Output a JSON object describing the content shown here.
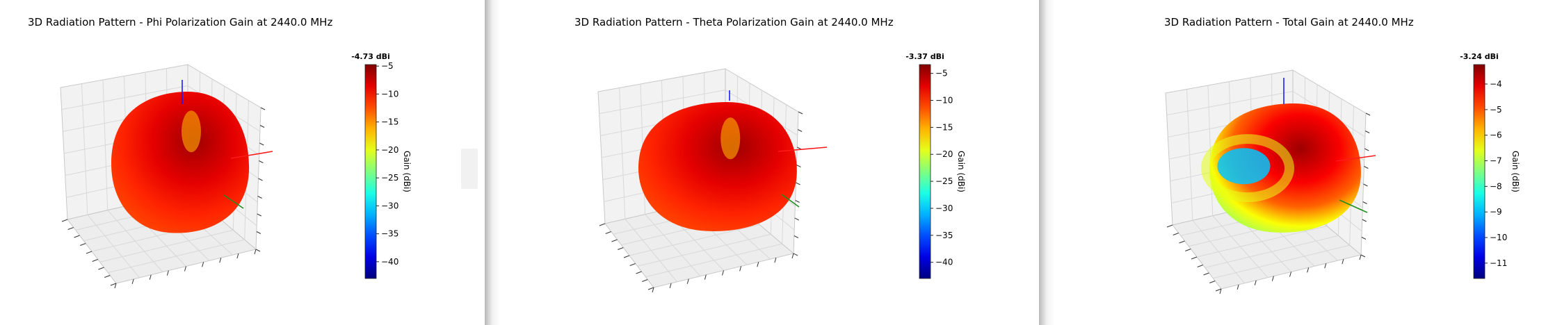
{
  "chart_data": [
    {
      "type": "surface3d",
      "title": "3D Radiation Pattern - Phi Polarization Gain at 2440.0 MHz",
      "colorbar": {
        "label": "Gain (dBi)",
        "max_label": "-4.73 dBi",
        "min": -43,
        "max": -4.73,
        "ticks": [
          -5,
          -10,
          -15,
          -20,
          -25,
          -30,
          -35,
          -40
        ]
      },
      "colormap": "jet"
    },
    {
      "type": "surface3d",
      "title": "3D Radiation Pattern - Theta Polarization Gain at 2440.0 MHz",
      "colorbar": {
        "label": "Gain (dBi)",
        "max_label": "-3.37 dBi",
        "min": -43,
        "max": -3.37,
        "ticks": [
          -5,
          -10,
          -15,
          -20,
          -25,
          -30,
          -35,
          -40
        ]
      },
      "colormap": "jet"
    },
    {
      "type": "surface3d",
      "title": "3D Radiation Pattern - Total Gain at 2440.0 MHz",
      "colorbar": {
        "label": "Gain (dBi)",
        "max_label": "-3.24 dBi",
        "min": -11.6,
        "max": -3.24,
        "ticks": [
          -4,
          -5,
          -6,
          -7,
          -8,
          -9,
          -10,
          -11
        ]
      },
      "colormap": "jet"
    }
  ]
}
